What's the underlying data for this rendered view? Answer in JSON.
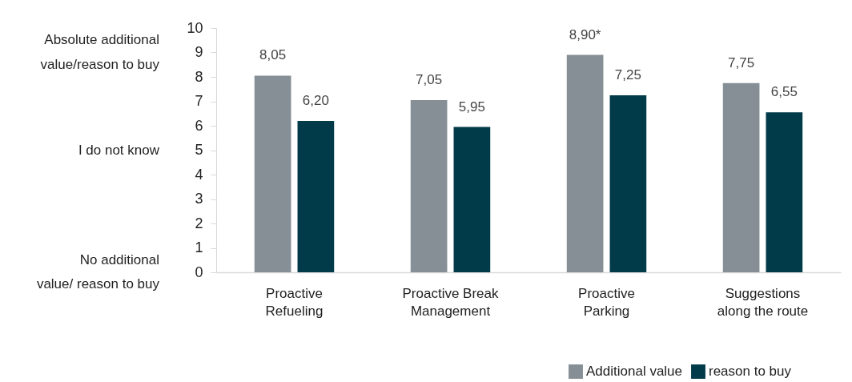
{
  "chart_data": {
    "type": "bar",
    "categories": [
      "Proactive Refueling",
      "Proactive Break Management",
      "Proactive Parking",
      "Suggestions along the route"
    ],
    "series": [
      {
        "name": "Additional value",
        "color": "#868f95",
        "values": [
          8.05,
          7.05,
          8.9,
          7.75
        ],
        "value_labels": [
          "8,05",
          "7,05",
          "8,90*",
          "7,75"
        ]
      },
      {
        "name": "reason to buy",
        "color": "#013a49",
        "values": [
          6.2,
          5.95,
          7.25,
          6.55
        ],
        "value_labels": [
          "6,20",
          "5,95",
          "7,25",
          "6,55"
        ]
      }
    ],
    "ylim": [
      0,
      10
    ],
    "yticks": [
      0,
      1,
      2,
      3,
      4,
      5,
      6,
      7,
      8,
      9,
      10
    ],
    "annotations": [
      "Absolute additional value/reason to buy",
      "I do not know",
      "No additional value/ reason to buy"
    ],
    "grid": false,
    "legend": "bottom right"
  }
}
